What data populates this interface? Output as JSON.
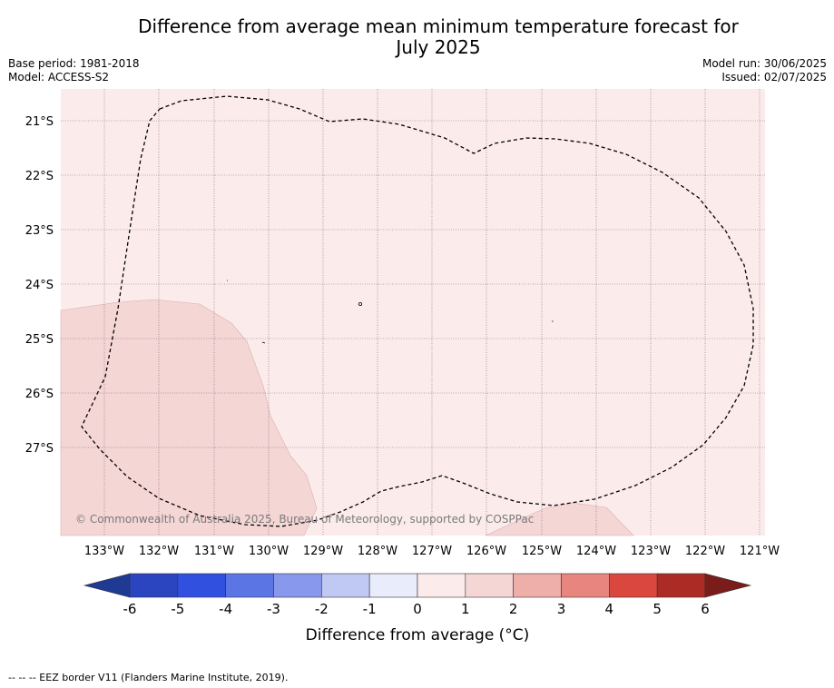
{
  "title_line1": "Difference from average mean minimum temperature forecast for",
  "title_line2": "July 2025",
  "meta_left": {
    "base_period": "Base period: 1981-2018",
    "model": "Model: ACCESS-S2"
  },
  "meta_right": {
    "model_run": "Model run: 30/06/2025",
    "issued": "Issued: 02/07/2025"
  },
  "map": {
    "lat_labels": [
      "21°S",
      "22°S",
      "23°S",
      "24°S",
      "25°S",
      "26°S",
      "27°S"
    ],
    "lon_labels": [
      "133°W",
      "132°W",
      "131°W",
      "130°W",
      "129°W",
      "128°W",
      "127°W",
      "126°W",
      "125°W",
      "124°W",
      "123°W",
      "122°W",
      "121°W"
    ],
    "copyright": "© Commonwealth of Australia 2025, Bureau of Meteorology, supported by COSPPac",
    "colors": {
      "background_anomaly": "#fbeceb",
      "warmer_anomaly": "#f4d6d5",
      "eez_border": "#000000"
    }
  },
  "colorbar": {
    "ticks": [
      "-6",
      "-5",
      "-4",
      "-3",
      "-2",
      "-1",
      "0",
      "1",
      "2",
      "3",
      "4",
      "5",
      "6"
    ],
    "label": "Difference from average (°C)",
    "colors": [
      "#1f3a93",
      "#2b44c0",
      "#3250df",
      "#5b75e4",
      "#8898ec",
      "#c0c8f4",
      "#e9ecfb",
      "#fbeceb",
      "#f4d6d5",
      "#eeaea9",
      "#e8857f",
      "#d9473e",
      "#ac2b25",
      "#7a1c1a"
    ]
  },
  "footer": "--  --  -- EEZ border V11 (Flanders Marine Institute, 2019)."
}
